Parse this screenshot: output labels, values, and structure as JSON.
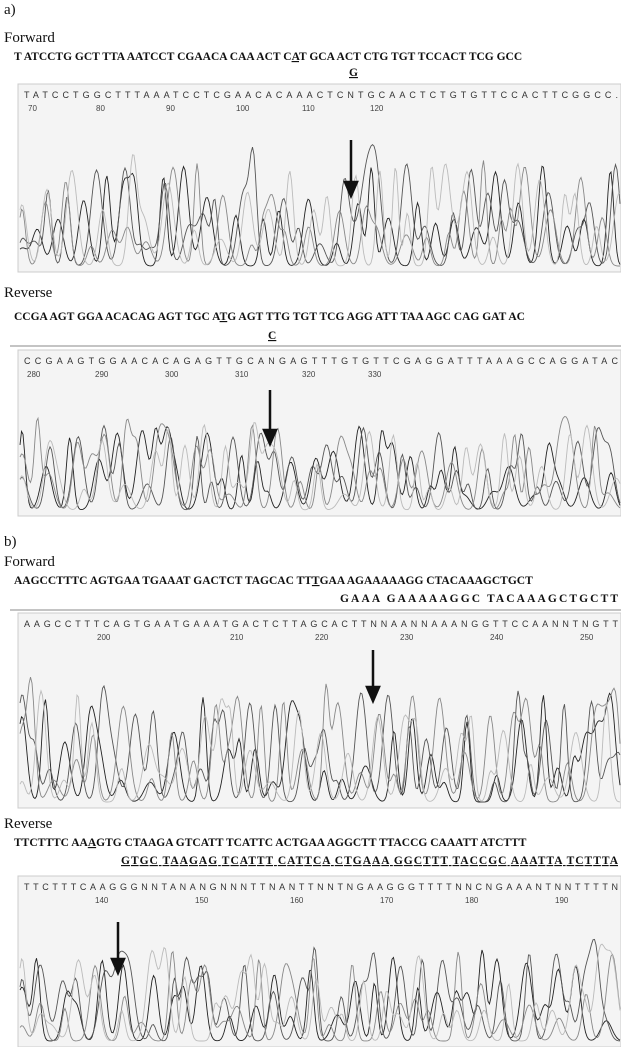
{
  "panel_a": {
    "label": "a)",
    "forward": {
      "title": "Forward",
      "sequence": {
        "before": "T ATCCTG GCT TTA AATCCT CGAACA CAA ACT C",
        "mark": "A",
        "after": "T GCA ACT CTG TGT  TCCACT TCG GCC"
      },
      "variant": "G",
      "trace_bases": "TATCCTGGCTTTAAATCCTCGAACACAAACTCNTGCAACTCTGTGTTCCACTTCGGCC.",
      "positions": [
        70,
        80,
        90,
        100,
        110,
        120
      ]
    },
    "reverse": {
      "title": "Reverse",
      "sequence": {
        "before": "CCGA AGT GGA ACACAG AGT TGC A",
        "mark": "T",
        "after": "G AGT TTG TGT TCG AGG ATT  TAA AGC CAG GAT AC"
      },
      "variant": "C",
      "trace_bases": "CCGAAGTGGAACACAGAGTTGCANGAGTTTGTGTTCGAGGATTTAAAGCCAGGATAC",
      "positions": [
        280,
        290,
        300,
        310,
        320,
        330
      ]
    }
  },
  "panel_b": {
    "label": "b)",
    "forward": {
      "title": "Forward",
      "sequence": {
        "before": "AAGCCTTTC AGTGAA TGAAAT GACTCT TAGCAC TT",
        "mark": "T",
        "after": "GAA AGAAAAAGG CTACAAAGCTGCT"
      },
      "variant": "GAAA GAAAAAGGC TACAAAGCTGCTT",
      "trace_bases": "AAGCCTTTCAGTGAATGAAATGACTCTTAGCACTTNNAANNAAANGGTTCCAANNTNGTT",
      "positions": [
        200,
        210,
        220,
        230,
        240,
        250
      ]
    },
    "reverse": {
      "title": "Reverse",
      "sequence": {
        "before": "TTCTTTC AA",
        "mark": "A",
        "after": "GTG CTAAGA GTCATT TCATTC ACTGAA AGGCTT TTACCG CAAATT ATCTTT"
      },
      "variant": "GTGC TAAGAG TCATTT CATTCA CTGAAA GGCTTT TACCGC AAATTA TCTTTA",
      "trace_bases": "TTCTTTCAAGGGNNTANANGNNNTTNANTTNNTNGAAGGGTTTTNNCNGAAANTNNTTTTN",
      "positions": [
        140,
        150,
        160,
        170,
        180,
        190
      ]
    }
  }
}
